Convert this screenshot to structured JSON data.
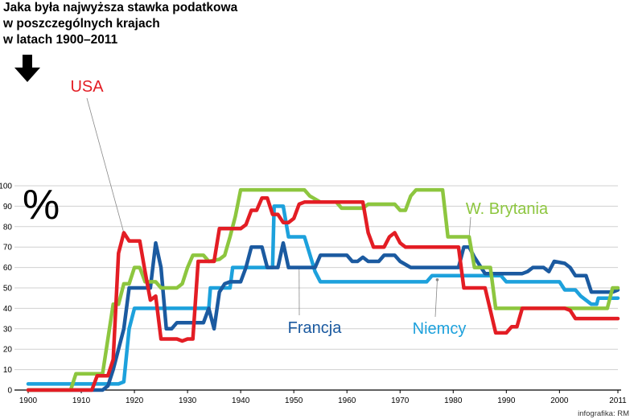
{
  "header": {
    "title_lines": [
      "Jaka była najwyższa stawka podatkowa",
      "w poszczególnych krajach",
      "w latach 1900–2011"
    ]
  },
  "unit_symbol": "%",
  "credit": "infografika: RM",
  "chart_data": {
    "type": "line",
    "title": "Jaka była najwyższa stawka podatkowa w poszczególnych krajach w latach 1900–2011",
    "xlabel": "",
    "ylabel": "%",
    "xlim": [
      1900,
      2011
    ],
    "ylim": [
      0,
      100
    ],
    "x_ticks": [
      1900,
      1910,
      1920,
      1930,
      1940,
      1950,
      1960,
      1970,
      1980,
      1990,
      2000,
      2011
    ],
    "y_ticks": [
      0,
      10,
      20,
      30,
      40,
      50,
      60,
      70,
      80,
      90,
      100
    ],
    "grid": true,
    "series": [
      {
        "name": "Niemcy",
        "color": "#1da1dc",
        "points": [
          [
            1900,
            3
          ],
          [
            1912,
            3
          ],
          [
            1916,
            3
          ],
          [
            1917,
            3
          ],
          [
            1918,
            4
          ],
          [
            1919,
            30
          ],
          [
            1920,
            40
          ],
          [
            1931,
            40
          ],
          [
            1932,
            40
          ],
          [
            1934,
            40
          ],
          [
            1934.3,
            50
          ],
          [
            1938,
            50
          ],
          [
            1938.5,
            60
          ],
          [
            1945,
            60
          ],
          [
            1946,
            60
          ],
          [
            1946.3,
            90
          ],
          [
            1948,
            90
          ],
          [
            1949,
            75
          ],
          [
            1952,
            75
          ],
          [
            1954,
            58
          ],
          [
            1955,
            53
          ],
          [
            1975,
            53
          ],
          [
            1976,
            56
          ],
          [
            1989,
            56
          ],
          [
            1990,
            53
          ],
          [
            2000,
            53
          ],
          [
            2001,
            49
          ],
          [
            2003,
            49
          ],
          [
            2004,
            46
          ],
          [
            2006,
            42
          ],
          [
            2007,
            42
          ],
          [
            2007.3,
            45
          ],
          [
            2011,
            45
          ]
        ]
      },
      {
        "name": "Francja",
        "color": "#1b5aa0",
        "points": [
          [
            1900,
            0
          ],
          [
            1914,
            0
          ],
          [
            1915,
            2
          ],
          [
            1916,
            10
          ],
          [
            1917,
            20
          ],
          [
            1918,
            30
          ],
          [
            1919,
            50
          ],
          [
            1923,
            50
          ],
          [
            1924,
            72
          ],
          [
            1925,
            60
          ],
          [
            1926,
            30
          ],
          [
            1927,
            30
          ],
          [
            1928,
            33
          ],
          [
            1933,
            33
          ],
          [
            1934,
            40
          ],
          [
            1935,
            30
          ],
          [
            1936,
            48
          ],
          [
            1937,
            52
          ],
          [
            1938,
            53
          ],
          [
            1940,
            53
          ],
          [
            1941,
            60
          ],
          [
            1942,
            70
          ],
          [
            1944,
            70
          ],
          [
            1945,
            60
          ],
          [
            1947,
            60
          ],
          [
            1948,
            72
          ],
          [
            1949,
            60
          ],
          [
            1954,
            60
          ],
          [
            1955,
            66
          ],
          [
            1960,
            66
          ],
          [
            1961,
            63
          ],
          [
            1962,
            63
          ],
          [
            1963,
            65
          ],
          [
            1964,
            63
          ],
          [
            1966,
            63
          ],
          [
            1967,
            66
          ],
          [
            1969,
            66
          ],
          [
            1970,
            63
          ],
          [
            1972,
            60
          ],
          [
            1978,
            60
          ],
          [
            1981,
            60
          ],
          [
            1982,
            70
          ],
          [
            1983,
            70
          ],
          [
            1984,
            65
          ],
          [
            1986,
            57
          ],
          [
            1993,
            57
          ],
          [
            1994,
            58
          ],
          [
            1995,
            60
          ],
          [
            1997,
            60
          ],
          [
            1998,
            58
          ],
          [
            1999,
            63
          ],
          [
            2001,
            62
          ],
          [
            2002,
            60
          ],
          [
            2003,
            56
          ],
          [
            2005,
            56
          ],
          [
            2006,
            48
          ],
          [
            2010,
            48
          ],
          [
            2011,
            49
          ]
        ]
      },
      {
        "name": "W. Brytania",
        "color": "#8dc63f",
        "points": [
          [
            1900,
            0
          ],
          [
            1908,
            0
          ],
          [
            1909,
            8
          ],
          [
            1914,
            8
          ],
          [
            1915,
            25
          ],
          [
            1916,
            42
          ],
          [
            1917,
            42
          ],
          [
            1918,
            52
          ],
          [
            1919,
            52
          ],
          [
            1920,
            60
          ],
          [
            1921,
            60
          ],
          [
            1922,
            53
          ],
          [
            1924,
            53
          ],
          [
            1925,
            50
          ],
          [
            1928,
            50
          ],
          [
            1929,
            52
          ],
          [
            1930,
            60
          ],
          [
            1931,
            66
          ],
          [
            1933,
            66
          ],
          [
            1934,
            63
          ],
          [
            1936,
            64
          ],
          [
            1937,
            66
          ],
          [
            1938,
            75
          ],
          [
            1939,
            85
          ],
          [
            1940,
            98
          ],
          [
            1952,
            98
          ],
          [
            1953,
            95
          ],
          [
            1955,
            92
          ],
          [
            1958,
            92
          ],
          [
            1959,
            89
          ],
          [
            1963,
            89
          ],
          [
            1964,
            91
          ],
          [
            1969,
            91
          ],
          [
            1970,
            88
          ],
          [
            1971,
            88
          ],
          [
            1972,
            95
          ],
          [
            1973,
            98
          ],
          [
            1977,
            98
          ],
          [
            1978,
            98
          ],
          [
            1979,
            75
          ],
          [
            1983,
            75
          ],
          [
            1984,
            60
          ],
          [
            1987,
            60
          ],
          [
            1988,
            40
          ],
          [
            2007,
            40
          ],
          [
            2008,
            40
          ],
          [
            2009,
            40
          ],
          [
            2010,
            50
          ],
          [
            2011,
            50
          ]
        ]
      },
      {
        "name": "USA",
        "color": "#e31d24",
        "points": [
          [
            1900,
            0
          ],
          [
            1912,
            0
          ],
          [
            1913,
            7
          ],
          [
            1915,
            7
          ],
          [
            1916,
            15
          ],
          [
            1917,
            67
          ],
          [
            1918,
            77
          ],
          [
            1919,
            73
          ],
          [
            1921,
            73
          ],
          [
            1922,
            58
          ],
          [
            1923,
            44
          ],
          [
            1924,
            46
          ],
          [
            1925,
            25
          ],
          [
            1928,
            25
          ],
          [
            1929,
            24
          ],
          [
            1930,
            25
          ],
          [
            1931,
            25
          ],
          [
            1932,
            63
          ],
          [
            1935,
            63
          ],
          [
            1936,
            79
          ],
          [
            1940,
            79
          ],
          [
            1941,
            81
          ],
          [
            1942,
            88
          ],
          [
            1943,
            88
          ],
          [
            1944,
            94
          ],
          [
            1945,
            94
          ],
          [
            1946,
            86
          ],
          [
            1947,
            86
          ],
          [
            1948,
            82
          ],
          [
            1949,
            82
          ],
          [
            1950,
            84
          ],
          [
            1951,
            91
          ],
          [
            1952,
            92
          ],
          [
            1963,
            92
          ],
          [
            1964,
            77
          ],
          [
            1965,
            70
          ],
          [
            1967,
            70
          ],
          [
            1968,
            75
          ],
          [
            1969,
            77
          ],
          [
            1970,
            72
          ],
          [
            1971,
            70
          ],
          [
            1981,
            70
          ],
          [
            1982,
            50
          ],
          [
            1986,
            50
          ],
          [
            1987,
            39
          ],
          [
            1988,
            28
          ],
          [
            1990,
            28
          ],
          [
            1991,
            31
          ],
          [
            1992,
            31
          ],
          [
            1993,
            40
          ],
          [
            2001,
            40
          ],
          [
            2002,
            39
          ],
          [
            2003,
            35
          ],
          [
            2011,
            35
          ]
        ]
      }
    ],
    "annotations": [
      {
        "text": "USA",
        "series": "USA",
        "color": "#e31d24",
        "point": [
          1918,
          77
        ]
      },
      {
        "text": "W. Brytania",
        "series": "W. Brytania",
        "color": "#8dc63f",
        "point": [
          1983,
          75
        ]
      },
      {
        "text": "Francja",
        "series": "Francja",
        "color": "#1b5aa0",
        "point": [
          1951,
          60
        ]
      },
      {
        "text": "Niemcy",
        "series": "Niemcy",
        "color": "#1da1dc",
        "point": [
          1977,
          54
        ]
      }
    ]
  }
}
